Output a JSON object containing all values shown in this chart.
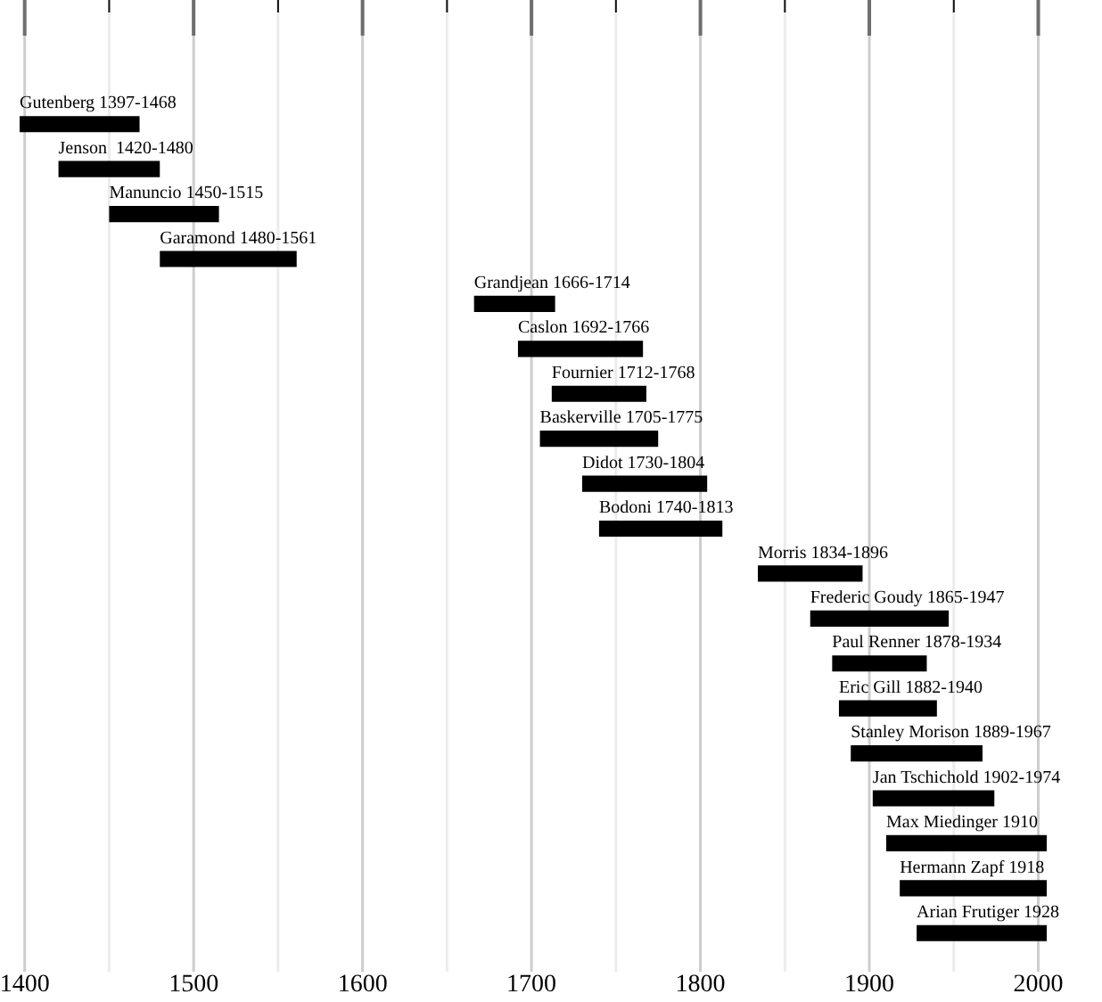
{
  "chart_data": {
    "type": "bar",
    "orientation": "horizontal",
    "categories": [
      "Gutenberg 1397-1468",
      "Jenson  1420-1480",
      "Manuncio 1450-1515",
      "Garamond 1480-1561",
      "Grandjean 1666-1714",
      "Caslon 1692-1766",
      "Fournier 1712-1768",
      "Baskerville 1705-1775",
      "Didot 1730-1804",
      "Bodoni 1740-1813",
      "Morris 1834-1896",
      "Frederic Goudy 1865-1947",
      "Paul Renner 1878-1934",
      "Eric Gill 1882-1940",
      "Stanley Morison 1889-1967",
      "Jan Tschichold 1902-1974",
      "Max Miedinger 1910",
      "Hermann Zapf 1918",
      "Arian Frutiger 1928"
    ],
    "base": [
      1397,
      1420,
      1450,
      1480,
      1666,
      1692,
      1712,
      1705,
      1730,
      1740,
      1834,
      1865,
      1878,
      1882,
      1889,
      1902,
      1910,
      1918,
      1928
    ],
    "values": [
      71,
      60,
      65,
      81,
      48,
      74,
      56,
      70,
      74,
      73,
      62,
      82,
      56,
      58,
      78,
      72,
      95,
      87,
      77
    ],
    "color": "#000000",
    "xlim": [
      1397,
      2005
    ],
    "xticks": [
      1400,
      {
        "value": 1450,
        "label": null
      },
      1500,
      {
        "value": 1550,
        "label": null
      },
      1600,
      {
        "value": 1650,
        "label": null
      },
      1700,
      {
        "value": 1750,
        "label": null
      },
      1800,
      {
        "value": 1850,
        "label": null
      },
      1900,
      {
        "value": 1950,
        "label": null
      },
      2000
    ],
    "grid": "x",
    "legend": false
  }
}
